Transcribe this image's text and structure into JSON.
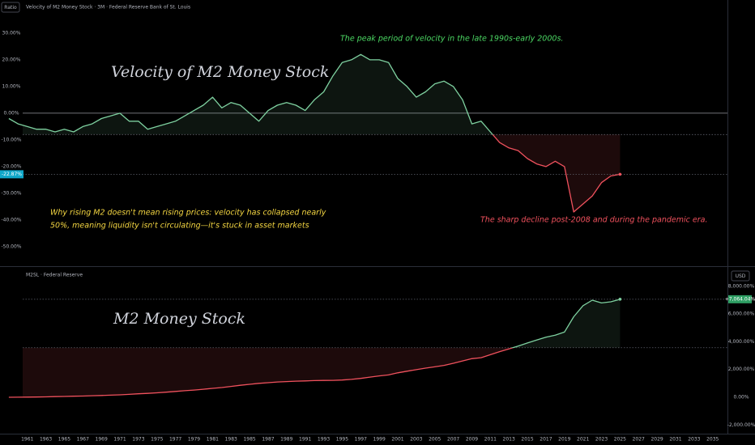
{
  "ui": {
    "scale_button": "Ratio",
    "currency_button": "USD"
  },
  "chart_data": [
    {
      "type": "line",
      "title": "Velocity of M2 Money Stock · 3M · Federal Reserve Bank of St. Louis",
      "series_label": "Velocity of M2 Money Stock",
      "annotations": [
        {
          "text": [
            "The peak period of velocity in the late 1990s-early 2000s."
          ],
          "color": "#4cd964"
        },
        {
          "text": [
            "Why rising M2 doesn't mean rising prices: velocity has collapsed nearly",
            "50%, meaning liquidity isn't circulating—it's stuck in asset markets"
          ],
          "color": "#f5d742"
        },
        {
          "text": [
            "The sharp decline post-2008 and during the pandemic era."
          ],
          "color": "#f0515d"
        }
      ],
      "x": [
        1959,
        1960,
        1961,
        1962,
        1963,
        1964,
        1965,
        1966,
        1967,
        1968,
        1969,
        1970,
        1971,
        1972,
        1973,
        1974,
        1975,
        1976,
        1977,
        1978,
        1979,
        1980,
        1981,
        1982,
        1983,
        1984,
        1985,
        1986,
        1987,
        1988,
        1989,
        1990,
        1991,
        1992,
        1993,
        1994,
        1995,
        1996,
        1997,
        1998,
        1999,
        2000,
        2001,
        2002,
        2003,
        2004,
        2005,
        2006,
        2007,
        2008,
        2009,
        2010,
        2011,
        2012,
        2013,
        2014,
        2015,
        2016,
        2017,
        2018,
        2019,
        2020,
        2021,
        2022,
        2023,
        2024,
        2025
      ],
      "values": [
        -2,
        -4,
        -5,
        -6,
        -6,
        -7,
        -6,
        -7,
        -5,
        -4,
        -2,
        -1,
        0,
        -3,
        -3,
        -6,
        -5,
        -4,
        -3,
        -1,
        1,
        3,
        6,
        2,
        4,
        3,
        0,
        -3,
        1,
        3,
        4,
        3,
        1,
        5,
        8,
        14,
        19,
        20,
        22,
        20,
        20,
        19,
        13,
        10,
        6,
        8,
        11,
        12,
        10,
        5,
        -4,
        -3,
        -7,
        -11,
        -13,
        -14,
        -17,
        -19,
        -20,
        -18,
        -20,
        -37,
        -34,
        -31,
        -26,
        -23.5,
        -22.87
      ],
      "last_value_label": "-22.87%",
      "up_color": "#7ed1a0",
      "down_color": "#f0515d",
      "baseline": -8,
      "zero_line": true,
      "scale_side": "left",
      "xlim": [
        1960.5,
        2036.6
      ],
      "ylim": [
        -57,
        42.4
      ],
      "yticks": [
        {
          "value": 30,
          "label": "30.00%"
        },
        {
          "value": 20,
          "label": "20.00%"
        },
        {
          "value": 10,
          "label": "10.00%"
        },
        {
          "value": 0,
          "label": "0.00%"
        },
        {
          "value": -10,
          "label": "-10.00%"
        },
        {
          "value": -20,
          "label": "-20.00%"
        },
        {
          "value": -30,
          "label": "-30.00%"
        },
        {
          "value": -40,
          "label": "-40.00%"
        },
        {
          "value": -50,
          "label": "-50.00%"
        }
      ]
    },
    {
      "type": "line",
      "title": "M2SL · Federal Reserve",
      "series_label": "M2 Money Stock",
      "x": [
        1959,
        1960,
        1961,
        1962,
        1963,
        1964,
        1965,
        1966,
        1967,
        1968,
        1969,
        1970,
        1971,
        1972,
        1973,
        1974,
        1975,
        1976,
        1977,
        1978,
        1979,
        1980,
        1981,
        1982,
        1983,
        1984,
        1985,
        1986,
        1987,
        1988,
        1989,
        1990,
        1991,
        1992,
        1993,
        1994,
        1995,
        1996,
        1997,
        1998,
        1999,
        2000,
        2001,
        2002,
        2003,
        2004,
        2005,
        2006,
        2007,
        2008,
        2009,
        2010,
        2011,
        2012,
        2013,
        2014,
        2015,
        2016,
        2017,
        2018,
        2019,
        2020,
        2021,
        2022,
        2023,
        2024,
        2025
      ],
      "values": [
        0,
        5,
        10,
        20,
        30,
        45,
        60,
        75,
        90,
        110,
        130,
        150,
        175,
        210,
        250,
        280,
        320,
        370,
        420,
        470,
        520,
        580,
        640,
        700,
        780,
        860,
        930,
        1000,
        1050,
        1100,
        1130,
        1160,
        1180,
        1200,
        1210,
        1220,
        1240,
        1290,
        1360,
        1450,
        1540,
        1610,
        1760,
        1880,
        1990,
        2100,
        2190,
        2300,
        2450,
        2620,
        2780,
        2850,
        3070,
        3290,
        3480,
        3690,
        3910,
        4130,
        4330,
        4480,
        4700,
        5800,
        6600,
        7000,
        6800,
        6880,
        7064.04
      ],
      "last_value_label": "+7,064.04%",
      "up_color": "#7ed1a0",
      "down_color": "#f0515d",
      "baseline": 3570,
      "zero_line": false,
      "scale_side": "right",
      "xlim": [
        1960.5,
        2036.6
      ],
      "ylim": [
        -2566,
        9330
      ],
      "yticks": [
        {
          "value": 8000,
          "label": "8,000.00%"
        },
        {
          "value": 6000,
          "label": "6,000.00%"
        },
        {
          "value": 4000,
          "label": "4,000.00%"
        },
        {
          "value": 2000,
          "label": "2,000.00%"
        },
        {
          "value": 0,
          "label": "0.00%"
        },
        {
          "value": -2000,
          "label": "-2,000.00%"
        }
      ],
      "xticks": [
        1961,
        1963,
        1965,
        1967,
        1969,
        1971,
        1973,
        1975,
        1977,
        1979,
        1981,
        1983,
        1985,
        1987,
        1989,
        1991,
        1993,
        1995,
        1997,
        1999,
        2001,
        2003,
        2005,
        2007,
        2009,
        2011,
        2013,
        2015,
        2017,
        2019,
        2021,
        2023,
        2025,
        2027,
        2029,
        2031,
        2033,
        2035
      ]
    }
  ]
}
